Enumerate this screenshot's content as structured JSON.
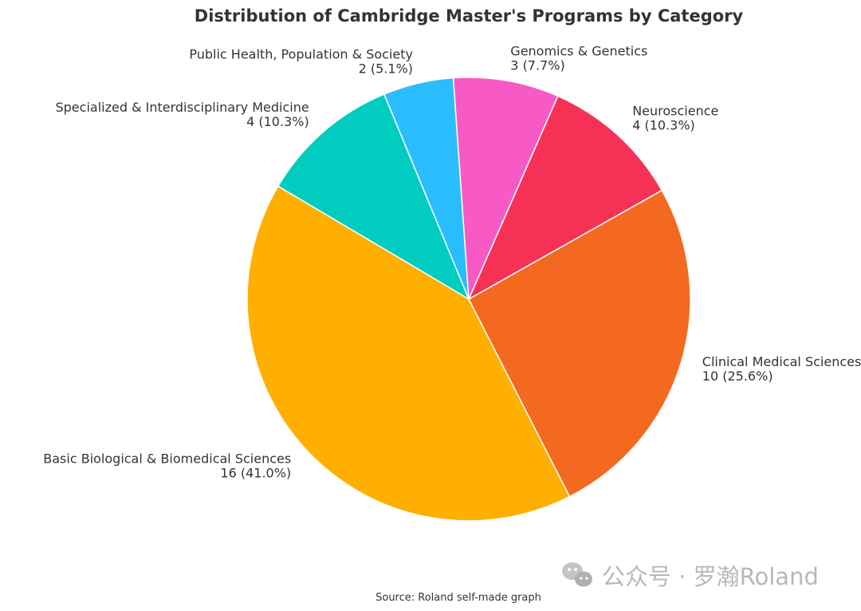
{
  "chart_data": {
    "type": "pie",
    "title": "Distribution of Cambridge Master's Programs by Category",
    "slices": [
      {
        "name": "Public Health, Population & Society",
        "value": 2,
        "percent": "5.1%",
        "color": "#29bdfd"
      },
      {
        "name": "Specialized & Interdisciplinary Medicine",
        "value": 4,
        "percent": "10.3%",
        "color": "#00ccc0"
      },
      {
        "name": "Basic Biological & Biomedical Sciences",
        "value": 16,
        "percent": "41.0%",
        "color": "#ffaf00"
      },
      {
        "name": "Clinical Medical Sciences",
        "value": 10,
        "percent": "25.6%",
        "color": "#f46920"
      },
      {
        "name": "Neuroscience",
        "value": 4,
        "percent": "10.3%",
        "color": "#f53255"
      },
      {
        "name": "Genomics & Genetics",
        "value": 3,
        "percent": "7.7%",
        "color": "#f75ac4"
      }
    ],
    "source": "Source: Roland self-made graph"
  },
  "watermark": {
    "icon": "wechat-icon",
    "text": "公众号 · 罗瀚Roland"
  }
}
